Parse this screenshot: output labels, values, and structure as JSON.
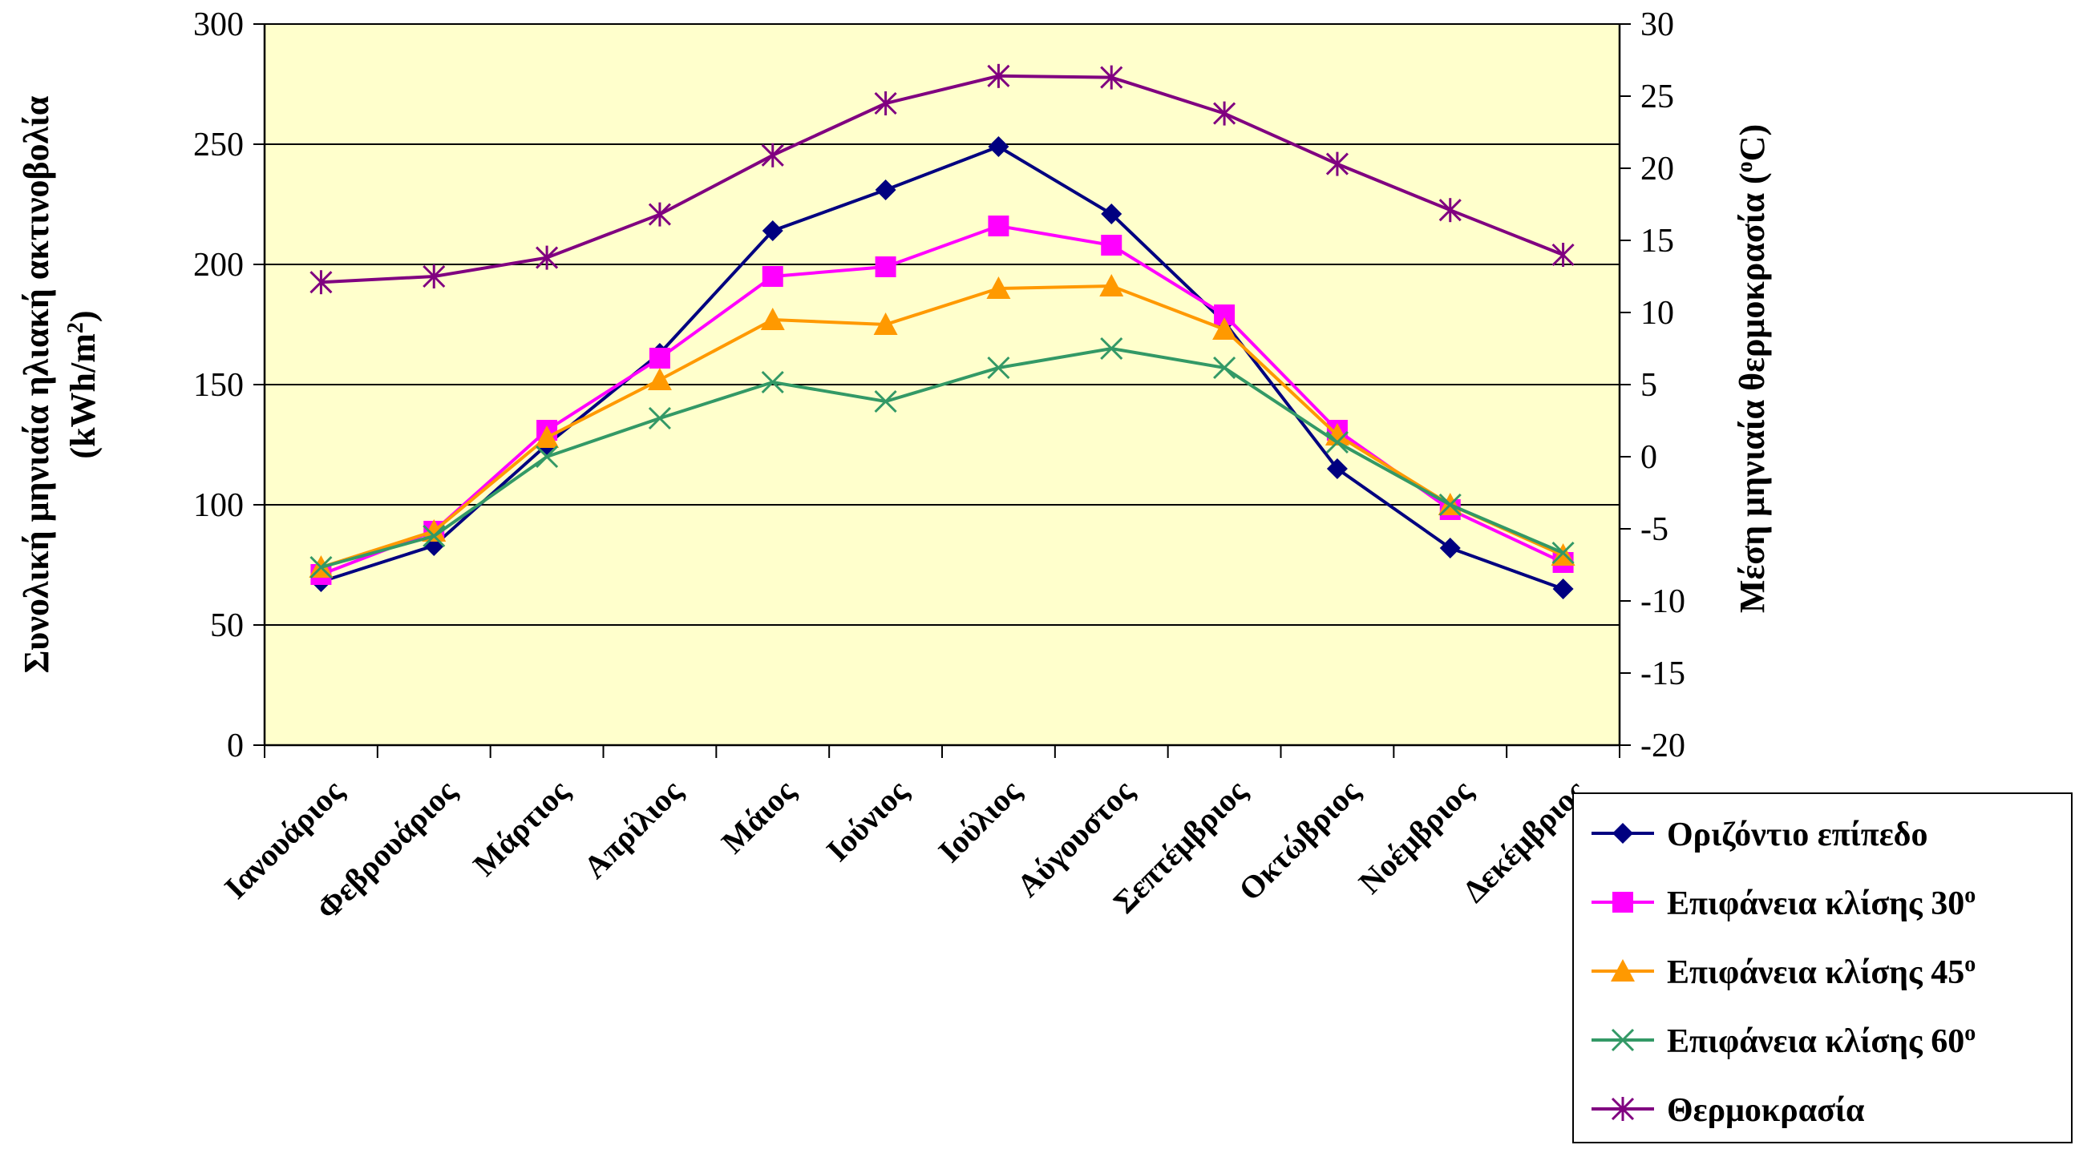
{
  "chart_data": {
    "type": "line",
    "categories": [
      "Ιανουάριος",
      "Φεβρουάριος",
      "Μάρτιος",
      "Απρίλιος",
      "Μάιος",
      "Ιούνιος",
      "Ιούλιος",
      "Αύγουστος",
      "Σεπτέμβριος",
      "Οκτώβριος",
      "Νοέμβριος",
      "Δεκέμβριος"
    ],
    "ylabel_line1": "Συνολική μηνιαία ηλιακή ακτινοβολία",
    "ylabel_line2": "(kWh/m",
    "ylabel_sup": "2",
    "ylabel_close": ")",
    "y2label": "Μέση μηνιαία θερμοκρασία (",
    "y2label_sup": "o",
    "y2label_close": "C)",
    "ylim": [
      0,
      300
    ],
    "yticks": [
      "0",
      "50",
      "100",
      "150",
      "200",
      "250",
      "300"
    ],
    "y2lim": [
      -20,
      30
    ],
    "y2ticks": [
      "-20",
      "-15",
      "-10",
      "-5",
      "0",
      "5",
      "10",
      "15",
      "20",
      "25",
      "30"
    ],
    "grid": true,
    "legend_position": "bottom-right",
    "series": [
      {
        "name": "Οριζόντιο επίπεδο",
        "name_sup": "",
        "axis": "left",
        "color": "#000080",
        "marker": "diamond",
        "values": [
          68,
          83,
          125,
          163,
          214,
          231,
          249,
          221,
          176,
          115,
          82,
          65
        ]
      },
      {
        "name": "Επιφάνεια κλίσης 30",
        "name_sup": "o",
        "axis": "left",
        "color": "#ff00ff",
        "marker": "square",
        "values": [
          71,
          89,
          131,
          161,
          195,
          199,
          216,
          208,
          179,
          131,
          98,
          76
        ]
      },
      {
        "name": "Επιφάνεια κλίσης 45",
        "name_sup": "o",
        "axis": "left",
        "color": "#ff9900",
        "marker": "triangle",
        "values": [
          74,
          89,
          128,
          152,
          177,
          175,
          190,
          191,
          173,
          129,
          100,
          79
        ]
      },
      {
        "name": "Επιφάνεια κλίσης 60",
        "name_sup": "o",
        "axis": "left",
        "color": "#339966",
        "marker": "x",
        "values": [
          74,
          87,
          120,
          136,
          151,
          143,
          157,
          165,
          157,
          126,
          100,
          80
        ]
      },
      {
        "name": "Θερμοκρασία",
        "name_sup": "",
        "axis": "right",
        "color": "#800080",
        "marker": "star",
        "values": [
          12.1,
          12.5,
          13.8,
          16.8,
          20.9,
          24.5,
          26.4,
          26.3,
          23.8,
          20.3,
          17.1,
          14.0
        ]
      }
    ]
  }
}
